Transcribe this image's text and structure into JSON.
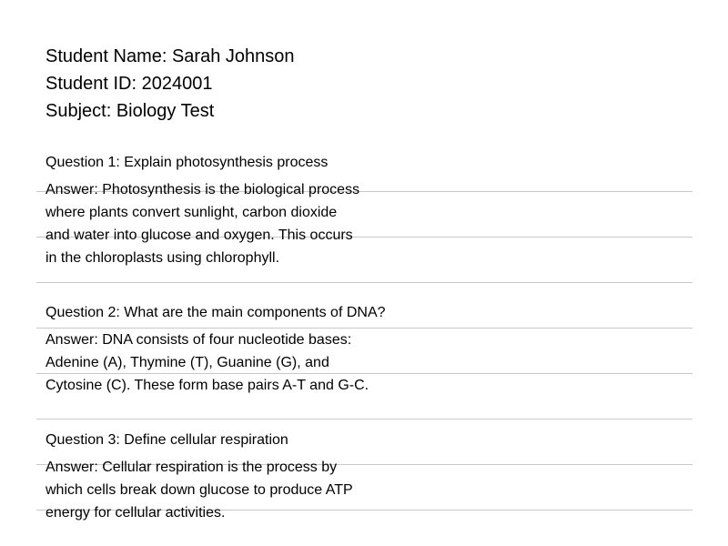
{
  "student": {
    "name_line": "Student Name: Sarah Johnson",
    "id_line": "Student ID: 2024001",
    "subject_line": "Subject: Biology Test"
  },
  "questions": [
    {
      "question": "Question 1: Explain photosynthesis process",
      "answer_lines": [
        "Answer: Photosynthesis is the biological process",
        "where plants convert sunlight, carbon dioxide",
        "and water into glucose and oxygen. This occurs",
        "in the chloroplasts using chlorophyll."
      ]
    },
    {
      "question": "Question 2: What are the main components of DNA?",
      "answer_lines": [
        "Answer: DNA consists of four nucleotide bases:",
        "Adenine (A), Thymine (T), Guanine (G), and",
        "Cytosine (C). These form base pairs A-T and G-C."
      ]
    },
    {
      "question": "Question 3: Define cellular respiration",
      "answer_lines": [
        "Answer: Cellular respiration is the process by",
        "which cells break down glucose to produce ATP",
        "energy for cellular activities."
      ]
    }
  ]
}
